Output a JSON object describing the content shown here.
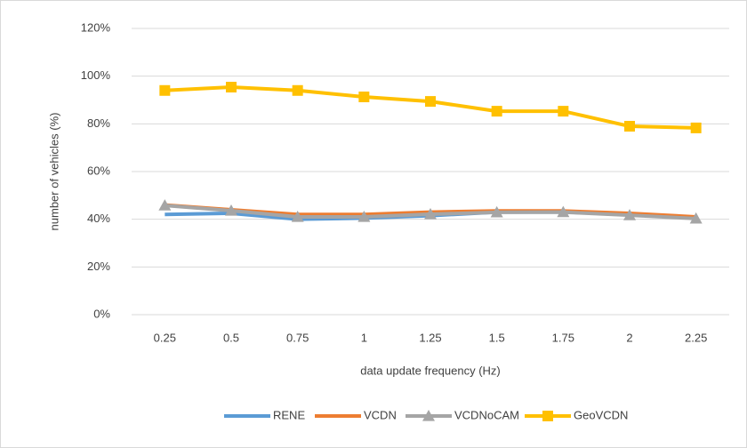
{
  "chart_data": {
    "type": "line",
    "xlabel": "data update frequency (Hz)",
    "ylabel": "number of vehicles (%)",
    "categories": [
      "0.25",
      "0.5",
      "0.75",
      "1",
      "1.25",
      "1.5",
      "1.75",
      "2",
      "2.25"
    ],
    "series": [
      {
        "name": "RENE",
        "color": "#5b9bd5",
        "values": [
          42,
          42.5,
          40,
          40.5,
          41.5,
          43,
          43,
          42,
          40.5
        ]
      },
      {
        "name": "VCDN",
        "color": "#ed7d31",
        "values": [
          46,
          44,
          42,
          42,
          43,
          43.5,
          43.5,
          42.5,
          41
        ]
      },
      {
        "name": "VCDNoCAM",
        "color": "#a5a5a5",
        "marker": "triangle",
        "values": [
          45.8,
          43.6,
          41,
          41,
          42.1,
          42.9,
          43,
          41.7,
          40.3
        ]
      },
      {
        "name": "GeoVCDN",
        "color": "#ffc000",
        "marker": "square",
        "values": [
          94,
          95.4,
          94,
          91.3,
          89.4,
          85.3,
          85.3,
          79,
          78.3
        ]
      }
    ],
    "ylim": [
      0,
      120
    ],
    "yticks": [
      {
        "value": 0,
        "label": "0%"
      },
      {
        "value": 20,
        "label": "20%"
      },
      {
        "value": 40,
        "label": "40%"
      },
      {
        "value": 60,
        "label": "60%"
      },
      {
        "value": 80,
        "label": "80%"
      },
      {
        "value": 100,
        "label": "100%"
      },
      {
        "value": 120,
        "label": "120%"
      }
    ],
    "grid": true,
    "legend": "bottom"
  }
}
